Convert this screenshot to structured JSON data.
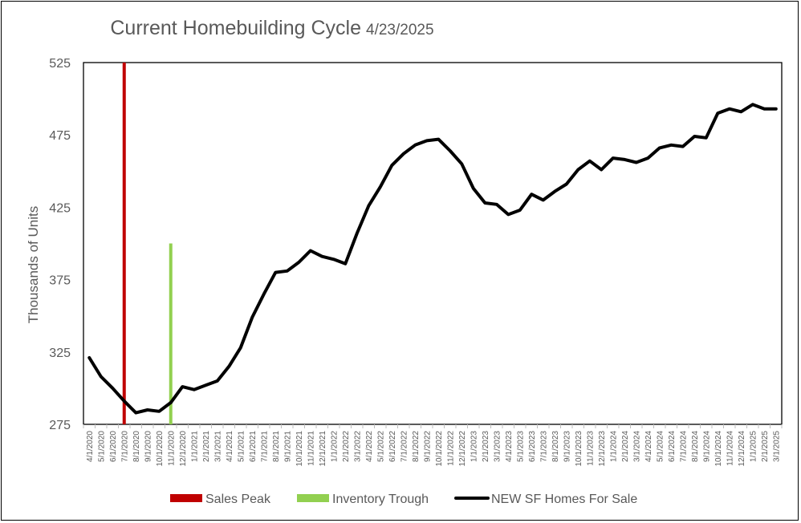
{
  "chart_data": {
    "type": "line",
    "title": "Current Homebuilding Cycle",
    "subtitle": "4/23/2025",
    "xlabel": "",
    "ylabel": "Thousands of Units",
    "ylim": [
      275,
      525
    ],
    "yticks": [
      275,
      325,
      375,
      425,
      475,
      525
    ],
    "grid": false,
    "legend_position": "bottom",
    "categories": [
      "4/1/2020",
      "5/1/2020",
      "6/1/2020",
      "7/1/2020",
      "8/1/2020",
      "9/1/2020",
      "10/1/2020",
      "11/1/2020",
      "12/1/2020",
      "1/1/2021",
      "2/1/2021",
      "3/1/2021",
      "4/1/2021",
      "5/1/2021",
      "6/1/2021",
      "7/1/2021",
      "8/1/2021",
      "9/1/2021",
      "10/1/2021",
      "11/1/2021",
      "12/1/2021",
      "1/1/2022",
      "2/1/2022",
      "3/1/2022",
      "4/1/2022",
      "5/1/2022",
      "6/1/2022",
      "7/1/2022",
      "8/1/2022",
      "9/1/2022",
      "10/1/2022",
      "11/1/2022",
      "12/1/2022",
      "1/1/2023",
      "2/1/2023",
      "3/1/2023",
      "4/1/2023",
      "5/1/2023",
      "6/1/2023",
      "7/1/2023",
      "8/1/2023",
      "9/1/2023",
      "10/1/2023",
      "11/1/2023",
      "12/1/2023",
      "1/1/2024",
      "2/1/2024",
      "3/1/2024",
      "4/1/2024",
      "5/1/2024",
      "6/1/2024",
      "7/1/2024",
      "8/1/2024",
      "9/1/2024",
      "10/1/2024",
      "11/1/2024",
      "12/1/2024",
      "1/1/2025",
      "2/1/2025",
      "3/1/2025"
    ],
    "series": [
      {
        "name": "NEW SF Homes For Sale",
        "color": "#000000",
        "values": [
          321,
          308,
          300,
          291,
          283,
          285,
          284,
          290,
          301,
          299,
          302,
          305,
          315,
          328,
          349,
          365,
          380,
          381,
          387,
          395,
          391,
          389,
          386,
          407,
          426,
          439,
          454,
          462,
          468,
          471,
          472,
          464,
          455,
          438,
          428,
          427,
          420,
          423,
          434,
          430,
          436,
          441,
          451,
          457,
          451,
          459,
          458,
          456,
          459,
          466,
          468,
          467,
          474,
          473,
          490,
          493,
          491,
          496,
          493,
          493
        ]
      }
    ],
    "markers": [
      {
        "name": "Sales Peak",
        "color": "#C00000",
        "x_index": 3,
        "y_from": 275,
        "y_to": 525
      },
      {
        "name": "Inventory Trough",
        "color": "#92D050",
        "x_index": 7,
        "y_from": 275,
        "y_to": 400
      }
    ]
  }
}
